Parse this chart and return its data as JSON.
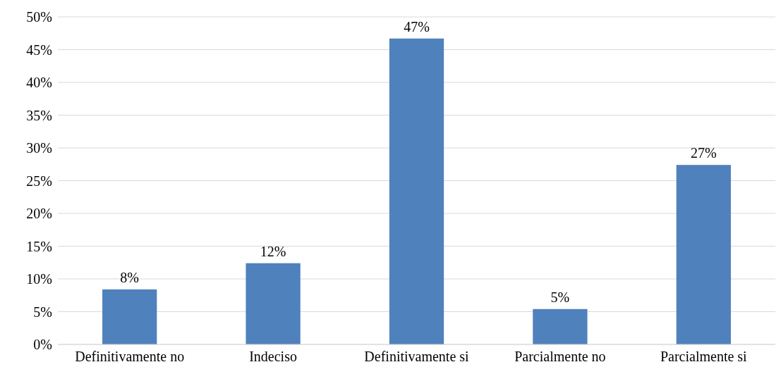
{
  "chart_data": {
    "type": "bar",
    "categories": [
      "Definitivamente no",
      "Indeciso",
      "Definitivamente si",
      "Parcialmente no",
      "Parcialmente si"
    ],
    "values": [
      8.4,
      12.4,
      46.7,
      5.4,
      27.4
    ],
    "value_labels": [
      "8%",
      "12%",
      "47%",
      "5%",
      "27%"
    ],
    "color": "#4f81bd",
    "ylim": [
      0,
      50
    ],
    "yticks": [
      {
        "value": 0,
        "label": "0%"
      },
      {
        "value": 5,
        "label": "5%"
      },
      {
        "value": 10,
        "label": "10%"
      },
      {
        "value": 15,
        "label": "15%"
      },
      {
        "value": 20,
        "label": "20%"
      },
      {
        "value": 25,
        "label": "25%"
      },
      {
        "value": 30,
        "label": "30%"
      },
      {
        "value": 35,
        "label": "35%"
      },
      {
        "value": 40,
        "label": "40%"
      },
      {
        "value": 45,
        "label": "45%"
      },
      {
        "value": 50,
        "label": "50%"
      }
    ],
    "grid": true
  }
}
